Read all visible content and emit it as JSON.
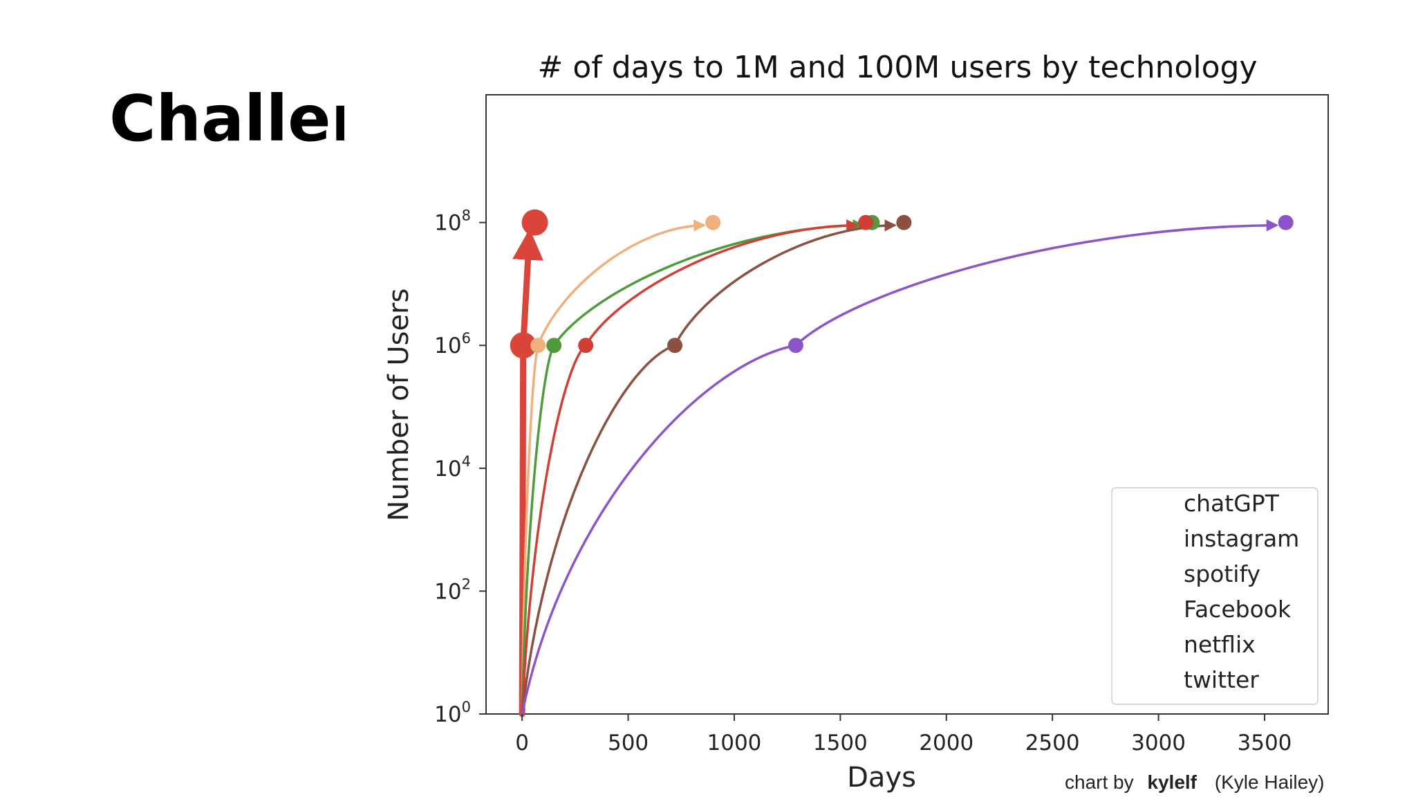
{
  "slide": {
    "heading": "Challen"
  },
  "chart_data": {
    "type": "line",
    "title": "# of days to 1M and 100M users by technology",
    "xlabel": "Days",
    "ylabel": "Number of Users",
    "xlim": [
      -170,
      3800
    ],
    "ylim": [
      1,
      12000000000
    ],
    "yscale": "log",
    "x_ticks": [
      0,
      500,
      1000,
      1500,
      2000,
      2500,
      3000,
      3500
    ],
    "y_ticks": [
      {
        "value": 1,
        "base": "10",
        "exp": "0"
      },
      {
        "value": 100,
        "base": "10",
        "exp": "2"
      },
      {
        "value": 10000,
        "base": "10",
        "exp": "4"
      },
      {
        "value": 1000000,
        "base": "10",
        "exp": "6"
      },
      {
        "value": 100000000,
        "base": "10",
        "exp": "8"
      }
    ],
    "grid": false,
    "legend_position": "lower-right",
    "legend": [
      "chatGPT",
      "instagram",
      "spotify",
      "Facebook",
      "netflix",
      "twitter"
    ],
    "series": [
      {
        "name": "chatGPT",
        "color": "#d9453b",
        "days_to_1M": 5,
        "days_to_100M": 60
      },
      {
        "name": "instagram",
        "color": "#f0b07c",
        "days_to_1M": 75,
        "days_to_100M": 900
      },
      {
        "name": "spotify",
        "color": "#4f9a3b",
        "days_to_1M": 150,
        "days_to_100M": 1650
      },
      {
        "name": "Facebook",
        "color": "#d03f36",
        "days_to_1M": 300,
        "days_to_100M": 1620
      },
      {
        "name": "netflix",
        "color": "#8a5040",
        "days_to_1M": 720,
        "days_to_100M": 1800
      },
      {
        "name": "twitter",
        "color": "#8b55c8",
        "days_to_1M": 1290,
        "days_to_100M": 3600
      }
    ],
    "credit": {
      "prefix": "chart by",
      "author": "kylelf",
      "suffix": "(Kyle Hailey)"
    }
  }
}
